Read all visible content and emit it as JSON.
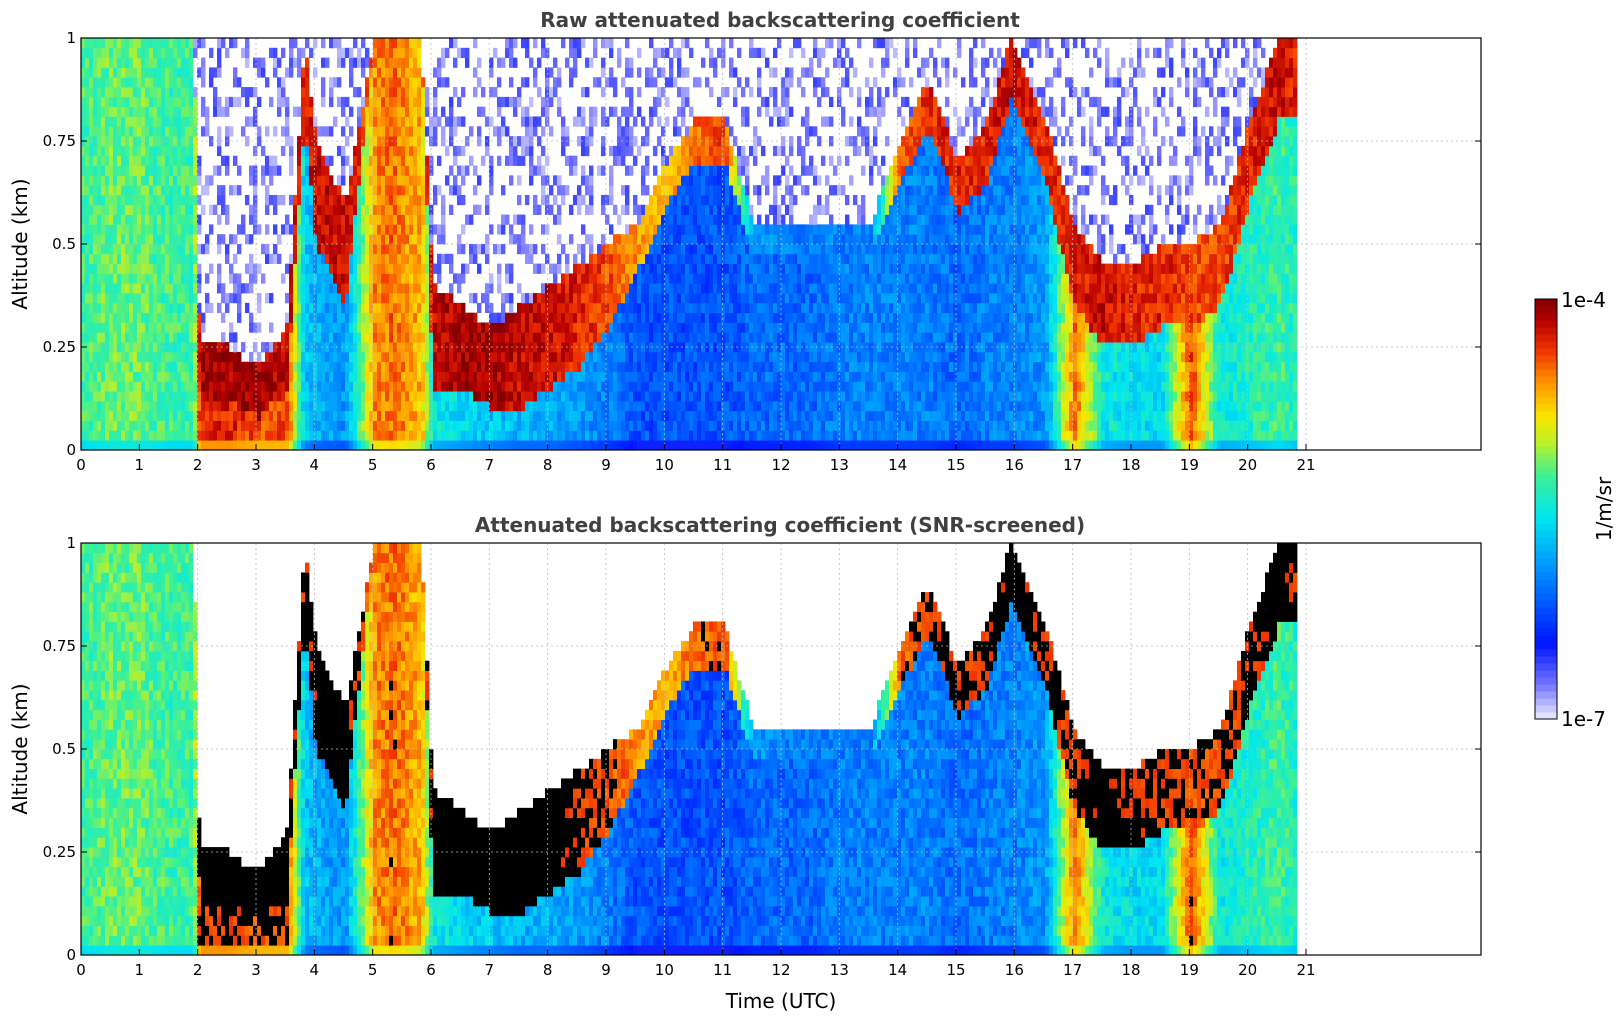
{
  "chart_data": [
    {
      "type": "heatmap",
      "title": "Raw attenuated backscattering coefficient",
      "xlabel": "",
      "ylabel": "Altitude (km)",
      "xlim": [
        0,
        24
      ],
      "ylim": [
        0,
        1
      ],
      "xticks": [
        0,
        1,
        2,
        3,
        4,
        5,
        6,
        7,
        8,
        9,
        10,
        11,
        12,
        13,
        14,
        15,
        16,
        17,
        18,
        19,
        20,
        21
      ],
      "xtick_labels": [
        "0",
        "1",
        "2",
        "3",
        "4",
        "5",
        "6",
        "7",
        "8",
        "9",
        "10",
        "11",
        "12",
        "13",
        "14",
        "15",
        "16",
        "17",
        "18",
        "19",
        "20",
        "21"
      ],
      "yticks": [
        0,
        0.25,
        0.5,
        0.75,
        1
      ],
      "ytick_labels": [
        "0",
        "0.25",
        "0.5",
        "0.75",
        "1"
      ],
      "data_end_hour": 20.8,
      "grid": true,
      "screened": false
    },
    {
      "type": "heatmap",
      "title": "Attenuated backscattering coefficient (SNR-screened)",
      "xlabel": "Time (UTC)",
      "ylabel": "Altitude (km)",
      "xlim": [
        0,
        24
      ],
      "ylim": [
        0,
        1
      ],
      "xticks": [
        0,
        1,
        2,
        3,
        4,
        5,
        6,
        7,
        8,
        9,
        10,
        11,
        12,
        13,
        14,
        15,
        16,
        17,
        18,
        19,
        20,
        21
      ],
      "xtick_labels": [
        "0",
        "1",
        "2",
        "3",
        "4",
        "5",
        "6",
        "7",
        "8",
        "9",
        "10",
        "11",
        "12",
        "13",
        "14",
        "15",
        "16",
        "17",
        "18",
        "19",
        "20",
        "21"
      ],
      "yticks": [
        0,
        0.25,
        0.5,
        0.75,
        1
      ],
      "ytick_labels": [
        "0",
        "0.25",
        "0.5",
        "0.75",
        "1"
      ],
      "data_end_hour": 20.8,
      "grid": true,
      "screened": true
    }
  ],
  "colorbar": {
    "scale": "log",
    "min_label": "1e-7",
    "max_label": "1e-4",
    "unit_label": "1/m/sr",
    "min_value": 1e-07,
    "max_value": 0.0001
  },
  "profile": {
    "hours": [
      0,
      0.5,
      1,
      1.5,
      1.9,
      2.0,
      2.5,
      3,
      3.5,
      3.8,
      4.0,
      4.5,
      5,
      5.3,
      5.8,
      6.0,
      6.5,
      7,
      7.5,
      8,
      8.5,
      9,
      9.5,
      10,
      10.5,
      11,
      11.5,
      12,
      12.5,
      13,
      13.5,
      14,
      14.5,
      15,
      15.5,
      15.9,
      16.5,
      17,
      17.5,
      18,
      18.5,
      19,
      19.5,
      20,
      20.5,
      20.8
    ],
    "layer_top_km": [
      1,
      1,
      1,
      1,
      1,
      0.25,
      0.25,
      0.2,
      0.3,
      1,
      0.75,
      0.6,
      1,
      1,
      1,
      0.4,
      0.35,
      0.3,
      0.35,
      0.4,
      0.45,
      0.5,
      0.55,
      0.7,
      0.8,
      0.8,
      0.55,
      0.55,
      0.55,
      0.55,
      0.55,
      0.75,
      0.9,
      0.7,
      0.8,
      1,
      0.8,
      0.55,
      0.45,
      0.45,
      0.5,
      0.5,
      0.55,
      0.8,
      1,
      1
    ],
    "layer_thick_km": [
      0,
      0,
      0,
      0,
      0,
      0.13,
      0.12,
      0.12,
      0.15,
      0.2,
      0.25,
      0.25,
      0,
      0,
      0,
      0.25,
      0.2,
      0.2,
      0.25,
      0.25,
      0.25,
      0.2,
      0.12,
      0.1,
      0.1,
      0.1,
      0.08,
      0.08,
      0.08,
      0.08,
      0.08,
      0.1,
      0.12,
      0.12,
      0.15,
      0.15,
      0.15,
      0.2,
      0.2,
      0.2,
      0.2,
      0.2,
      0.2,
      0.2,
      0.2,
      0.2
    ],
    "layer_log": [
      -5.4,
      -5.4,
      -5.4,
      -5.4,
      -5.4,
      -4.1,
      -4.1,
      -4.1,
      -4.2,
      -4.3,
      -4.2,
      -4.2,
      -4.5,
      -4.4,
      -4.5,
      -4.2,
      -4.1,
      -4.1,
      -4.2,
      -4.2,
      -4.3,
      -4.4,
      -4.6,
      -4.7,
      -4.5,
      -4.4,
      -5.9,
      -6.0,
      -6.0,
      -6.0,
      -6.0,
      -4.5,
      -4.3,
      -4.3,
      -4.3,
      -4.2,
      -4.3,
      -4.3,
      -4.2,
      -4.3,
      -4.3,
      -4.4,
      -4.4,
      -4.3,
      -4.2,
      -4.3
    ],
    "below_log": [
      -5.3,
      -5.2,
      -5.2,
      -5.3,
      -5.3,
      -4.3,
      -4.3,
      -4.4,
      -4.4,
      -5.7,
      -5.8,
      -5.9,
      -4.6,
      -4.5,
      -4.7,
      -5.5,
      -5.6,
      -5.7,
      -5.8,
      -5.8,
      -5.9,
      -6.0,
      -6.2,
      -6.2,
      -6.2,
      -6.2,
      -6.1,
      -6.1,
      -6.1,
      -6.0,
      -6.0,
      -6.0,
      -6.0,
      -6.1,
      -6.0,
      -6.0,
      -5.9,
      -4.5,
      -5.5,
      -5.6,
      -5.6,
      -4.4,
      -5.5,
      -5.4,
      -5.3,
      -5.4
    ]
  }
}
